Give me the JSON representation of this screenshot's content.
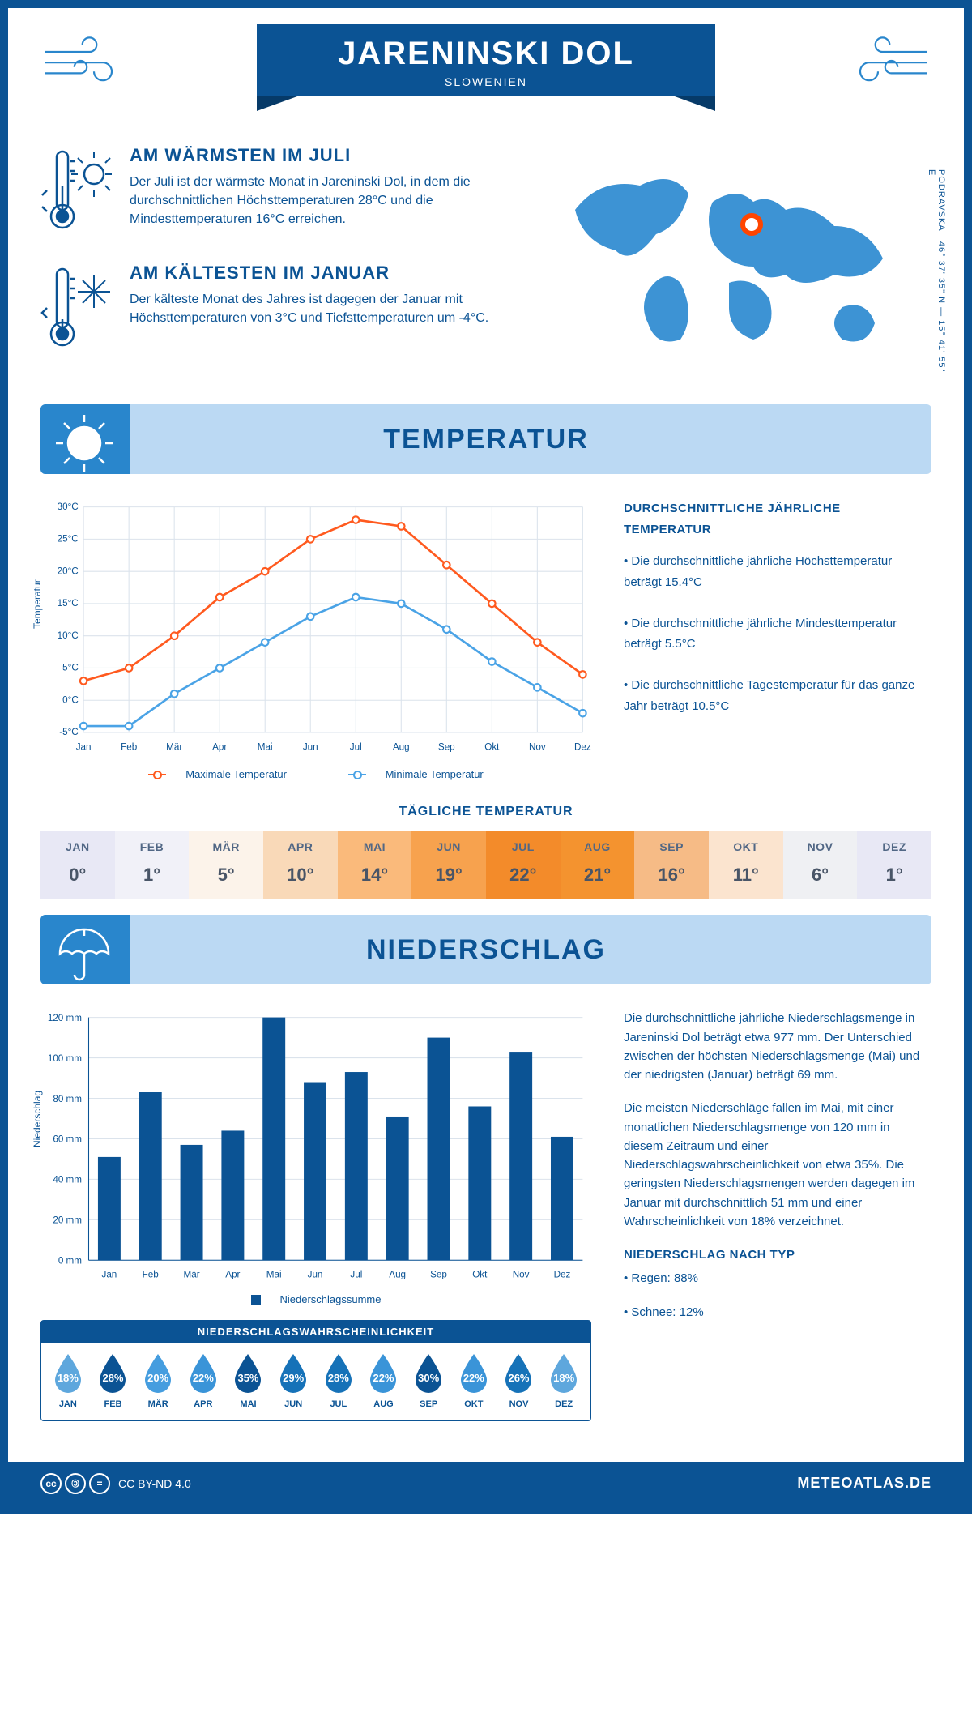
{
  "header": {
    "title": "JARENINSKI DOL",
    "subtitle": "SLOWENIEN"
  },
  "intro": {
    "warm": {
      "heading": "AM WÄRMSTEN IM JULI",
      "text": "Der Juli ist der wärmste Monat in Jareninski Dol, in dem die durchschnittlichen Höchsttemperaturen 28°C und die Mindesttemperaturen 16°C erreichen."
    },
    "cold": {
      "heading": "AM KÄLTESTEN IM JANUAR",
      "text": "Der kälteste Monat des Jahres ist dagegen der Januar mit Höchsttemperaturen von 3°C und Tiefsttemperaturen um -4°C."
    }
  },
  "map": {
    "coords_line1": "46° 37' 35\" N — 15° 41' 55\" E",
    "coords_line2": "PODRAVSKA",
    "marker_color": "#ff4500"
  },
  "sections": {
    "temperature": "TEMPERATUR",
    "precipitation": "NIEDERSCHLAG"
  },
  "temp_chart": {
    "type": "line",
    "months": [
      "Jan",
      "Feb",
      "Mär",
      "Apr",
      "Mai",
      "Jun",
      "Jul",
      "Aug",
      "Sep",
      "Okt",
      "Nov",
      "Dez"
    ],
    "series": {
      "max": {
        "label": "Maximale Temperatur",
        "color": "#ff5a1f",
        "values": [
          3,
          5,
          10,
          16,
          20,
          25,
          28,
          27,
          21,
          15,
          9,
          4
        ]
      },
      "min": {
        "label": "Minimale Temperatur",
        "color": "#4aa3e6",
        "values": [
          -4,
          -4,
          1,
          5,
          9,
          13,
          16,
          15,
          11,
          6,
          2,
          -2
        ]
      }
    },
    "ylabel": "Temperatur",
    "ylim": [
      -5,
      30
    ],
    "ytick_step": 5,
    "grid_color": "#dbe3ec",
    "background": "#ffffff",
    "axis_fontsize": 11
  },
  "temp_side": {
    "heading": "DURCHSCHNITTLICHE JÄHRLICHE TEMPERATUR",
    "b1": "• Die durchschnittliche jährliche Höchsttemperatur beträgt 15.4°C",
    "b2": "• Die durchschnittliche jährliche Mindesttemperatur beträgt 5.5°C",
    "b3": "• Die durchschnittliche Tagestemperatur für das ganze Jahr beträgt 10.5°C"
  },
  "daily": {
    "title": "TÄGLICHE TEMPERATUR",
    "months": [
      "JAN",
      "FEB",
      "MÄR",
      "APR",
      "MAI",
      "JUN",
      "JUL",
      "AUG",
      "SEP",
      "OKT",
      "NOV",
      "DEZ"
    ],
    "values": [
      "0°",
      "1°",
      "5°",
      "10°",
      "14°",
      "19°",
      "22°",
      "21°",
      "16°",
      "11°",
      "6°",
      "1°"
    ],
    "colors": [
      "#e8e8f5",
      "#f1f1f8",
      "#fcf3ea",
      "#f9d9b8",
      "#faba7b",
      "#f7a24e",
      "#f38b2a",
      "#f4932f",
      "#f6bb86",
      "#fbe4cf",
      "#eff0f3",
      "#e8e8f5"
    ]
  },
  "precip_chart": {
    "type": "bar",
    "months": [
      "Jan",
      "Feb",
      "Mär",
      "Apr",
      "Mai",
      "Jun",
      "Jul",
      "Aug",
      "Sep",
      "Okt",
      "Nov",
      "Dez"
    ],
    "values": [
      51,
      83,
      57,
      64,
      120,
      88,
      93,
      71,
      110,
      76,
      103,
      61
    ],
    "bar_color": "#0b5394",
    "ylabel": "Niederschlag",
    "ylim": [
      0,
      120
    ],
    "ytick_step": 20,
    "grid_color": "#dbe3ec",
    "legend": "Niederschlagssumme",
    "bar_width": 0.55
  },
  "precip_text": {
    "p1": "Die durchschnittliche jährliche Niederschlagsmenge in Jareninski Dol beträgt etwa 977 mm. Der Unterschied zwischen der höchsten Niederschlagsmenge (Mai) und der niedrigsten (Januar) beträgt 69 mm.",
    "p2": "Die meisten Niederschläge fallen im Mai, mit einer monatlichen Niederschlagsmenge von 120 mm in diesem Zeitraum und einer Niederschlagswahrscheinlichkeit von etwa 35%. Die geringsten Niederschlagsmengen werden dagegen im Januar mit durchschnittlich 51 mm und einer Wahrscheinlichkeit von 18% verzeichnet.",
    "heading": "NIEDERSCHLAG NACH TYP",
    "rain": "• Regen: 88%",
    "snow": "• Schnee: 12%"
  },
  "prob": {
    "title": "NIEDERSCHLAGSWAHRSCHEINLICHKEIT",
    "months": [
      "JAN",
      "FEB",
      "MÄR",
      "APR",
      "MAI",
      "JUN",
      "JUL",
      "AUG",
      "SEP",
      "OKT",
      "NOV",
      "DEZ"
    ],
    "values": [
      "18%",
      "28%",
      "20%",
      "22%",
      "35%",
      "29%",
      "28%",
      "22%",
      "30%",
      "22%",
      "26%",
      "18%"
    ],
    "colors": [
      "#5ea7dd",
      "#0b5394",
      "#459ddf",
      "#3a94d8",
      "#0b5394",
      "#1672b8",
      "#1672b8",
      "#3a94d8",
      "#0b5394",
      "#3a94d8",
      "#1672b8",
      "#5ea7dd"
    ]
  },
  "footer": {
    "license": "CC BY-ND 4.0",
    "brand": "METEOATLAS.DE"
  }
}
